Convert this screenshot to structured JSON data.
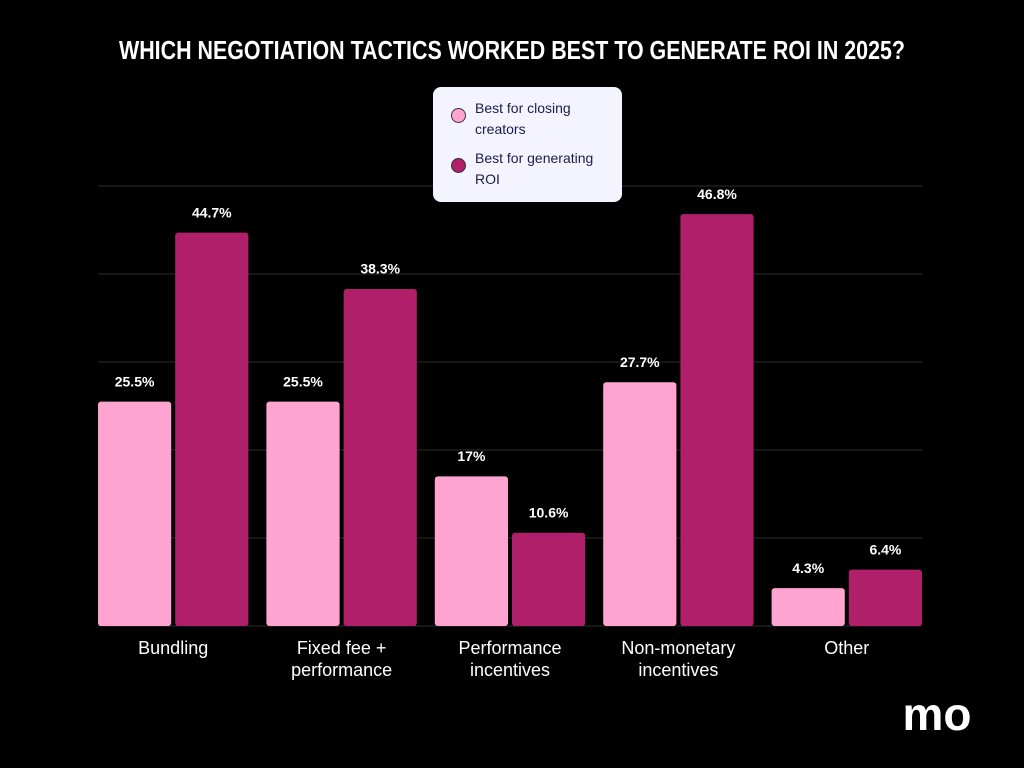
{
  "chart_data": {
    "type": "bar",
    "title": "WHICH NEGOTIATION TACTICS WORKED BEST TO GENERATE ROI IN 2025?",
    "categories": [
      "Bundling",
      "Fixed fee + performance",
      "Performance incentives",
      "Non-monetary incentives",
      "Other"
    ],
    "series": [
      {
        "name": "Best for closing creators",
        "color": "#ffa3d1",
        "values": [
          25.5,
          25.5,
          17,
          27.7,
          4.3
        ],
        "value_labels": [
          "25.5%",
          "25.5%",
          "17%",
          "27.7%",
          "4.3%"
        ]
      },
      {
        "name": "Best for generating ROI",
        "color": "#b0206a",
        "values": [
          44.7,
          38.3,
          10.6,
          46.8,
          6.4
        ],
        "value_labels": [
          "44.7%",
          "38.3%",
          "10.6%",
          "46.8%",
          "6.4%"
        ]
      }
    ],
    "ylim": [
      0,
      50
    ],
    "yticks": [
      0,
      10,
      20,
      30,
      40,
      50
    ],
    "grid": true,
    "logo": "mo"
  }
}
